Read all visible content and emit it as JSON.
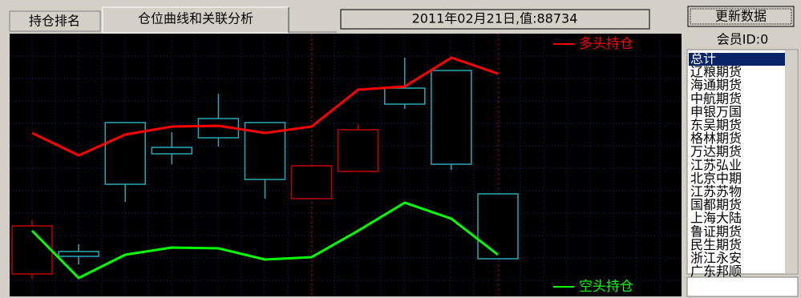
{
  "tabs": [
    "持仓排名",
    "仓位曲线和关联分析"
  ],
  "status": "2011年02月21日,值:88734",
  "button": "更新数据",
  "member_label": "会员ID:0",
  "members": [
    "总计",
    "辽粮期货",
    "海通期货",
    "中航期货",
    "申银万国",
    "东吴期货",
    "格林期货",
    "万达期货",
    "江苏弘业",
    "北京中期",
    "江苏苏物",
    "国都期货",
    "上海大陆",
    "鲁证期货",
    "民生期货",
    "浙江永安",
    "广东邦顺"
  ],
  "chart_data": {
    "type": "candlestick",
    "categories": [
      null,
      null,
      null,
      null,
      null,
      null,
      null,
      null,
      null,
      null,
      null
    ],
    "open": [
      26,
      54,
      215,
      184,
      220,
      215,
      120,
      154,
      258,
      280,
      126
    ],
    "high": [
      93,
      63,
      215,
      203,
      251,
      215,
      161,
      213,
      296,
      280,
      126
    ],
    "low": [
      20,
      38,
      116,
      163,
      185,
      120,
      120,
      154,
      232,
      156,
      45
    ],
    "close": [
      86,
      48,
      138,
      176,
      196,
      144,
      161,
      206,
      238,
      163,
      45
    ],
    "up_color": "#c00000",
    "down_color": "#2aa7b5",
    "ylim": [
      0,
      330
    ],
    "grid": true,
    "series": [
      {
        "name": "多头持仓",
        "color": "#ff0000",
        "values": [
          202,
          174,
          200,
          210,
          211,
          202,
          210,
          256,
          260,
          296,
          276
        ]
      },
      {
        "name": "空头持仓",
        "color": "#00ff00",
        "values": [
          80,
          21,
          50,
          59,
          58,
          44,
          47,
          80,
          115,
          95,
          50
        ]
      }
    ]
  }
}
